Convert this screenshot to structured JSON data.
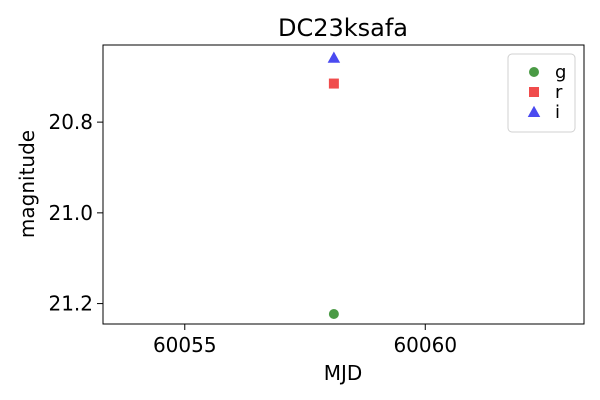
{
  "chart_data": {
    "type": "scatter",
    "title": "DC23ksafa",
    "xlabel": "MJD",
    "ylabel": "magnitude",
    "xlim": [
      60053.3,
      60063.3
    ],
    "ylim": [
      21.245,
      20.63
    ],
    "y_inverted": true,
    "xticks": [
      60055,
      60060
    ],
    "xtick_labels": [
      "60055",
      "60060"
    ],
    "yticks": [
      20.8,
      21.0,
      21.2
    ],
    "ytick_labels": [
      "20.8",
      "21.0",
      "21.2"
    ],
    "grid": false,
    "legend_position": "top-right",
    "series": [
      {
        "name": "g",
        "marker": "circle",
        "color": "#4a9a45",
        "points": [
          {
            "x": 60058.1,
            "y": 21.223
          }
        ]
      },
      {
        "name": "r",
        "marker": "square",
        "color": "#f04c4c",
        "points": [
          {
            "x": 60058.1,
            "y": 20.715
          }
        ]
      },
      {
        "name": "i",
        "marker": "triangle",
        "color": "#4a4af0",
        "points": [
          {
            "x": 60058.1,
            "y": 20.658
          }
        ]
      }
    ]
  }
}
